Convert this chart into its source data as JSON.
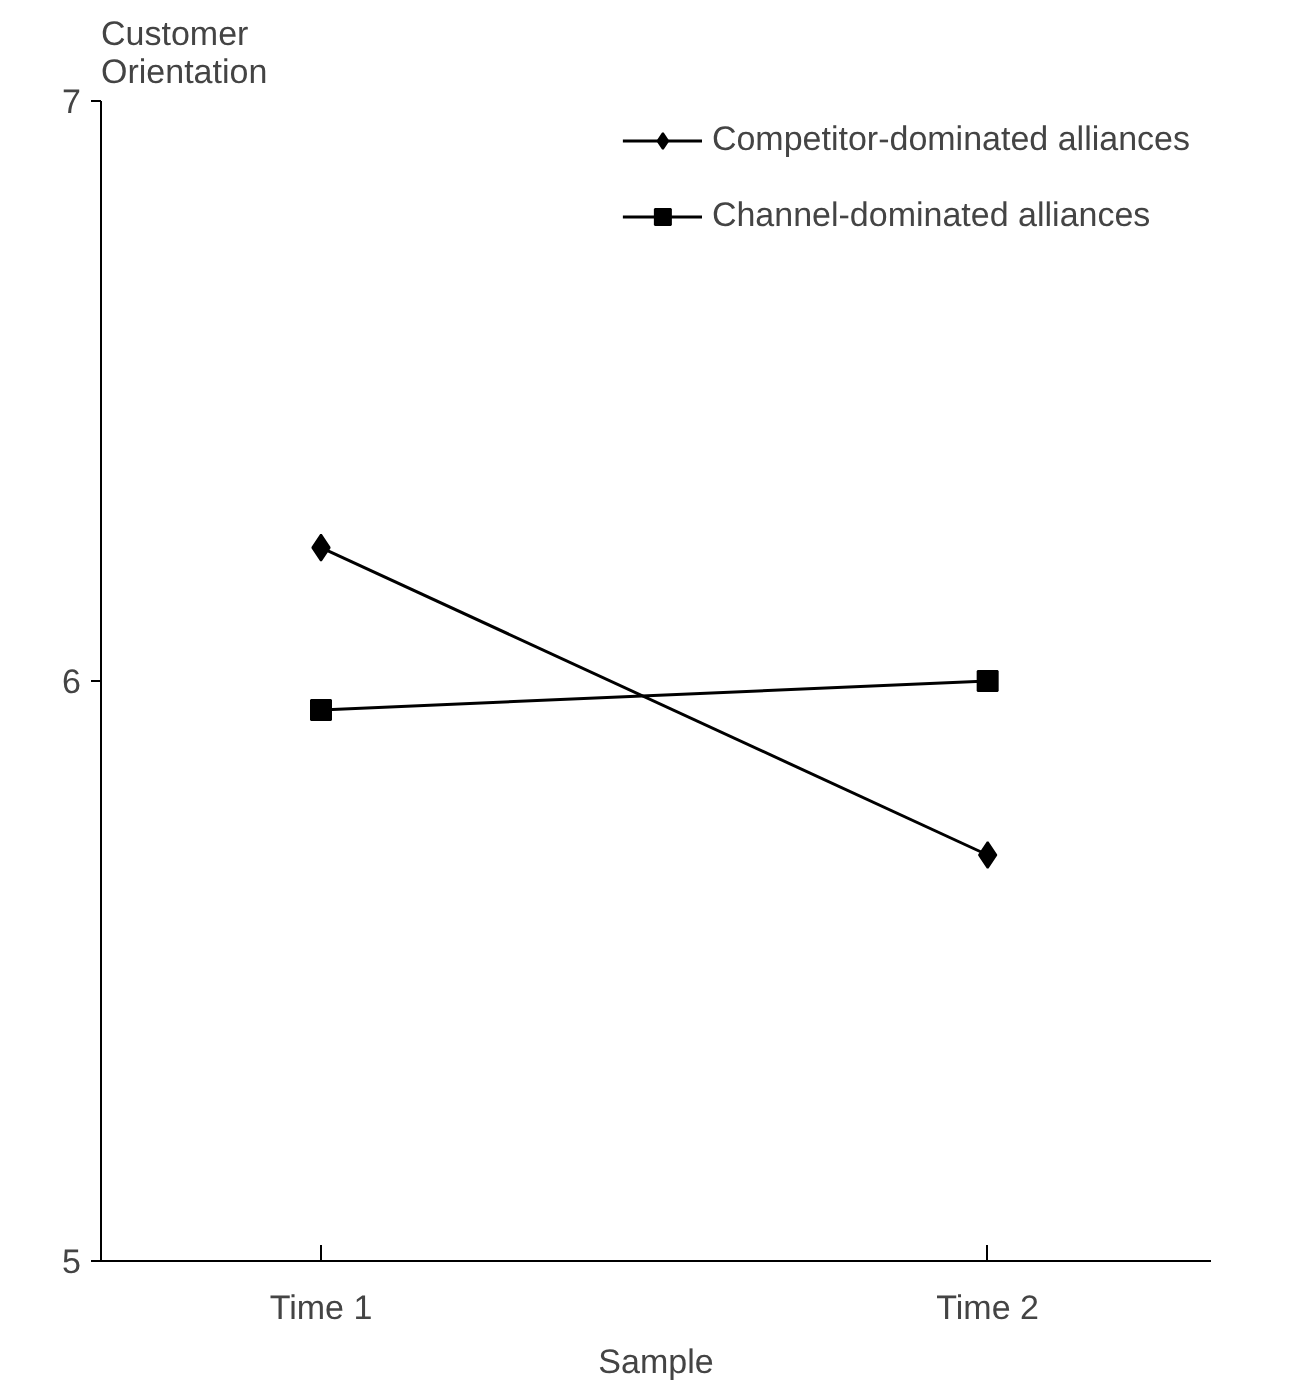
{
  "chart_data": {
    "type": "line",
    "ylabel": "Customer Orientation",
    "xlabel": "Sample",
    "categories": [
      "Time 1",
      "Time 2"
    ],
    "series": [
      {
        "name": "Competitor-dominated alliances",
        "color": "#000000",
        "marker": "diamond",
        "values": [
          6.23,
          5.7
        ]
      },
      {
        "name": "Channel-dominated alliances",
        "color": "#000000",
        "marker": "square",
        "values": [
          5.95,
          6.0
        ]
      }
    ],
    "ylim": [
      5,
      7
    ],
    "yticks": [
      5,
      6,
      7
    ],
    "grid": false,
    "legend": "top right",
    "line_style": "solid"
  }
}
